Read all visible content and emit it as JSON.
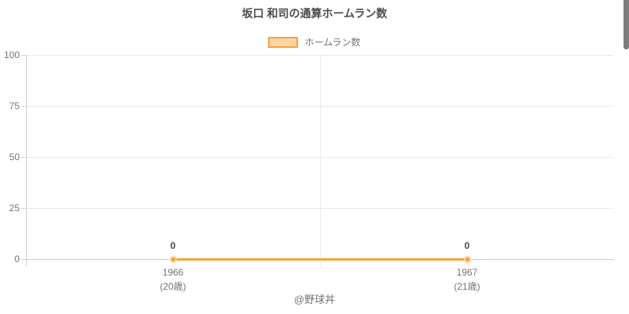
{
  "chart_data": {
    "type": "line",
    "title": "坂口 和司の通算ホームラン数",
    "legend": [
      "ホームラン数"
    ],
    "legend_position": "top",
    "categories": [
      "1966",
      "1967"
    ],
    "category_sublabels": [
      "(20歳)",
      "(21歳)"
    ],
    "series": [
      {
        "name": "ホームラン数",
        "values": [
          0,
          0
        ]
      }
    ],
    "point_labels": [
      "0",
      "0"
    ],
    "xlabel": "",
    "ylabel": "",
    "ylim": [
      0,
      100
    ],
    "yticks": [
      0,
      25,
      50,
      75,
      100
    ],
    "grid": true,
    "colors": {
      "line": "#f9a13c",
      "point_halo": "#fcd2a0",
      "legend_fill": "#fcd6a4",
      "grid": "#e9e9e9",
      "axis": "#d2d2d2",
      "text": "#757575",
      "title": "#4c4c4c",
      "value_label": "#444444",
      "scrollbar": "#7d7d7d"
    }
  },
  "footer": {
    "watermark": "@野球丼"
  }
}
